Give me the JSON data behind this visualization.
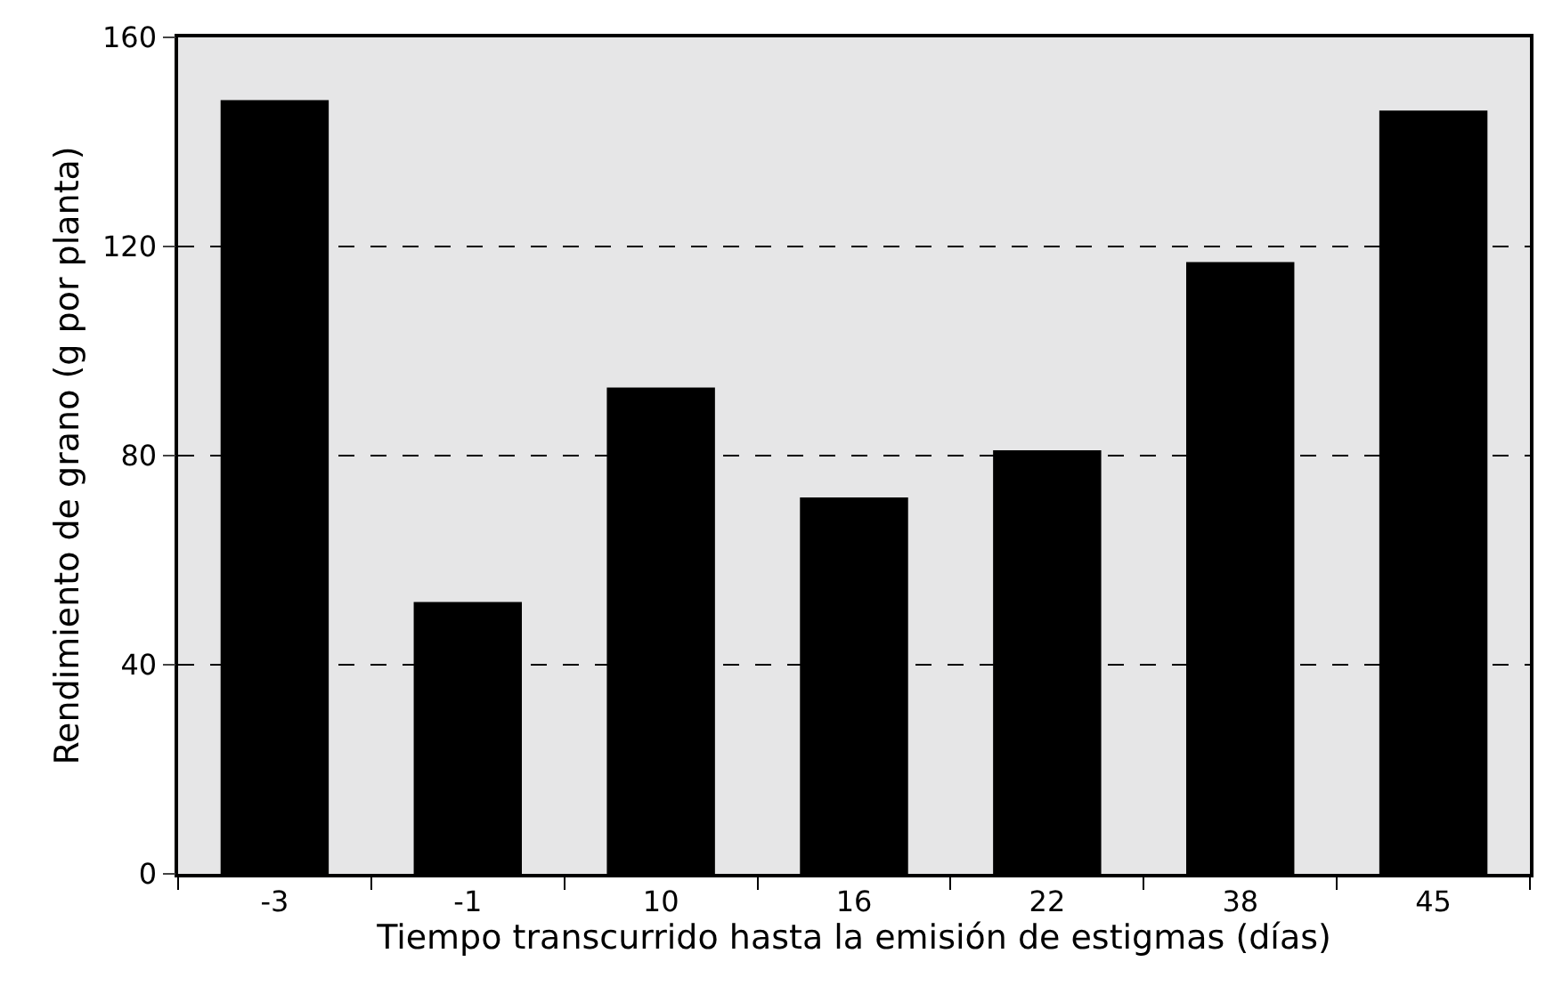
{
  "chart_data": {
    "type": "bar",
    "xlabel": "Tiempo transcurrido hasta la emisión de estigmas (días)",
    "ylabel": "Rendimiento de grano (g por planta)",
    "categories": [
      "-3",
      "-1",
      "10",
      "16",
      "22",
      "38",
      "45"
    ],
    "values": [
      148,
      52,
      93,
      72,
      81,
      117,
      146
    ],
    "color": "#000000",
    "ylim": [
      0,
      160
    ],
    "yticks": [
      0,
      40,
      80,
      120,
      160
    ],
    "grid": "y"
  }
}
